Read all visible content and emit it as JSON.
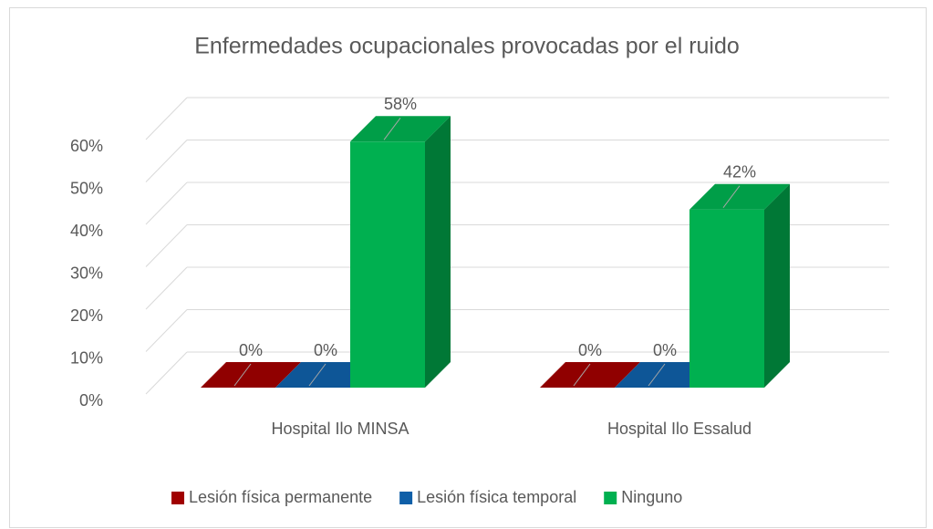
{
  "chart_data": {
    "type": "bar3d",
    "title": "Enfermedades ocupacionales provocadas por el ruido",
    "categories": [
      "Hospital Ilo MINSA",
      "Hospital Ilo Essalud"
    ],
    "series": [
      {
        "name": "Lesión física permanente",
        "color": "#a00000",
        "values": [
          0,
          0
        ],
        "value_labels": [
          "0%",
          "0%"
        ]
      },
      {
        "name": "Lesión física temporal",
        "color": "#0f5fa8",
        "values": [
          0,
          0
        ],
        "value_labels": [
          "0%",
          "0%"
        ]
      },
      {
        "name": "Ninguno",
        "color": "#00b050",
        "values": [
          58,
          42
        ],
        "value_labels": [
          "58%",
          "42%"
        ]
      }
    ],
    "ylim": [
      0,
      60
    ],
    "yticks": [
      {
        "value": 0,
        "label": "0%"
      },
      {
        "value": 10,
        "label": "10%"
      },
      {
        "value": 20,
        "label": "20%"
      },
      {
        "value": 30,
        "label": "30%"
      },
      {
        "value": 40,
        "label": "40%"
      },
      {
        "value": 50,
        "label": "50%"
      },
      {
        "value": 60,
        "label": "60%"
      }
    ],
    "grid": true,
    "legend": "bottom"
  }
}
